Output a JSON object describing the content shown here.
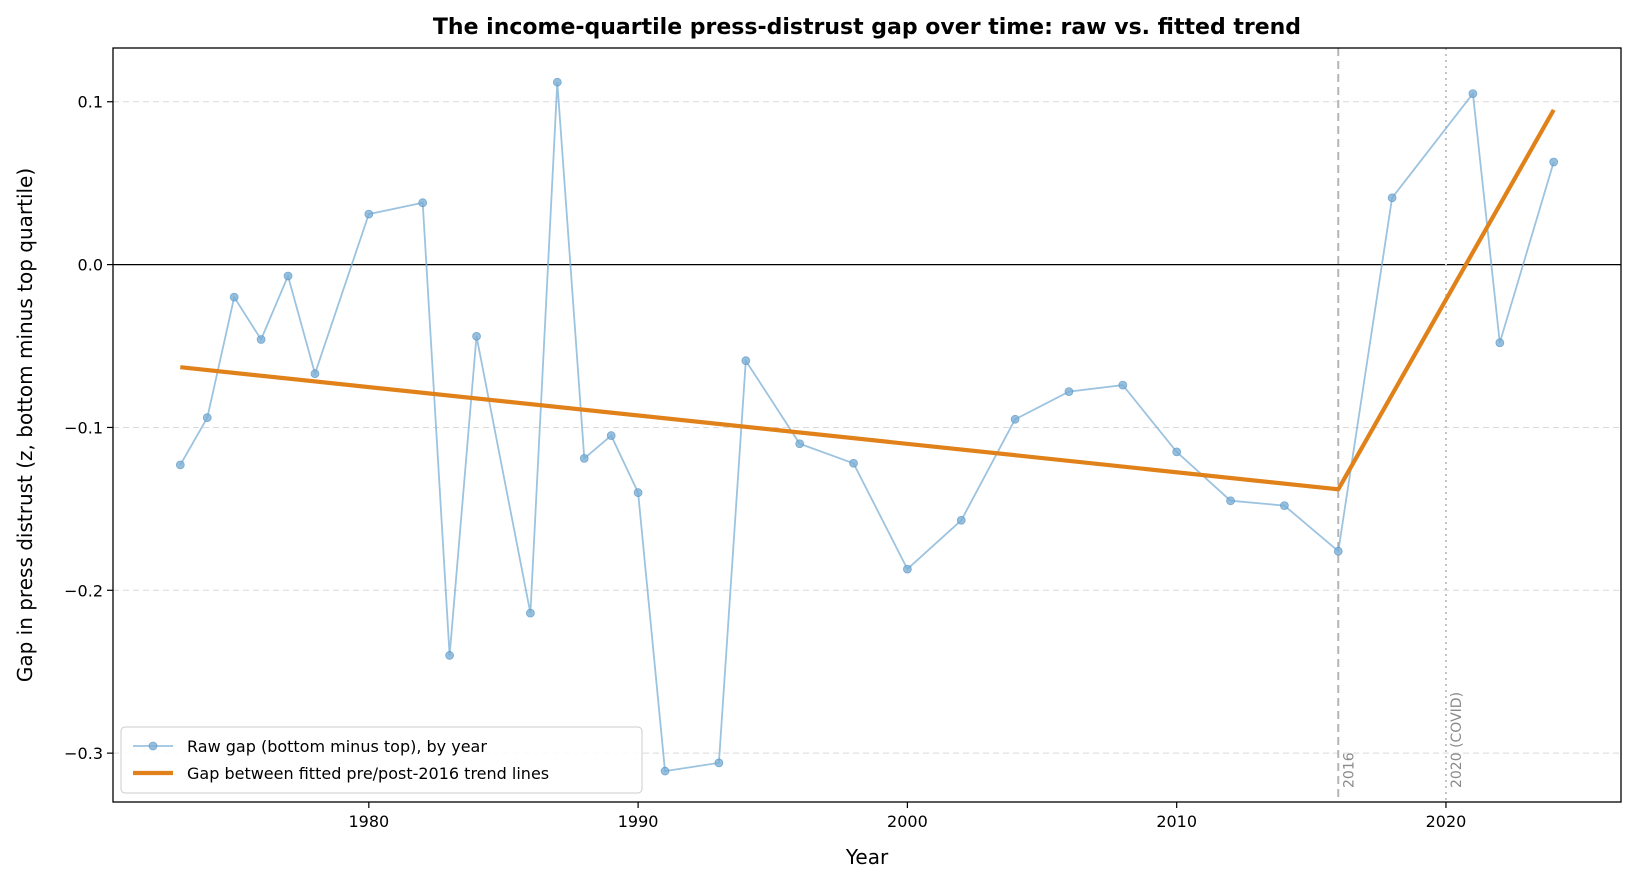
{
  "chart_data": {
    "type": "line",
    "title": "The income-quartile press-distrust gap over time: raw vs. fitted trend",
    "xlabel": "Year",
    "ylabel": "Gap in press distrust (z, bottom minus top quartile)",
    "xlim": [
      1970.5,
      2026.5
    ],
    "ylim": [
      -0.33,
      0.133
    ],
    "x_ticks": [
      1980,
      1990,
      2000,
      2010,
      2020
    ],
    "y_ticks": [
      0.1,
      0.0,
      -0.1,
      -0.2,
      -0.3
    ],
    "y_tick_labels": [
      "0.1",
      "0.0",
      "−0.1",
      "−0.2",
      "−0.3"
    ],
    "grid": "horizontal dashed",
    "zero_line": true,
    "legend_position": "lower-left",
    "series": [
      {
        "name": "Raw gap (bottom minus top), by year",
        "color": "#7bafd4",
        "marker": "circle",
        "x": [
          1973,
          1974,
          1975,
          1976,
          1977,
          1978,
          1980,
          1982,
          1983,
          1984,
          1986,
          1987,
          1988,
          1989,
          1990,
          1991,
          1993,
          1994,
          1996,
          1998,
          2000,
          2002,
          2004,
          2006,
          2008,
          2010,
          2012,
          2014,
          2016,
          2018,
          2021,
          2022,
          2024
        ],
        "y": [
          -0.123,
          -0.094,
          -0.02,
          -0.046,
          -0.007,
          -0.067,
          0.031,
          0.038,
          -0.24,
          -0.044,
          -0.214,
          0.112,
          -0.119,
          -0.105,
          -0.14,
          -0.311,
          -0.306,
          -0.059,
          -0.11,
          -0.122,
          -0.187,
          -0.157,
          -0.095,
          -0.078,
          -0.074,
          -0.115,
          -0.145,
          -0.148,
          -0.176,
          0.041,
          0.105,
          -0.048,
          0.063
        ]
      },
      {
        "name": "Gap between fitted pre/post-2016 trend lines",
        "color": "#e08119",
        "x": [
          1973,
          2016,
          2024
        ],
        "y": [
          -0.063,
          -0.138,
          0.095
        ]
      }
    ],
    "vertical_lines": [
      {
        "x": 2016,
        "label": "2016",
        "style": "dashed"
      },
      {
        "x": 2020,
        "label": "2020 (COVID)",
        "style": "dotted"
      }
    ]
  }
}
